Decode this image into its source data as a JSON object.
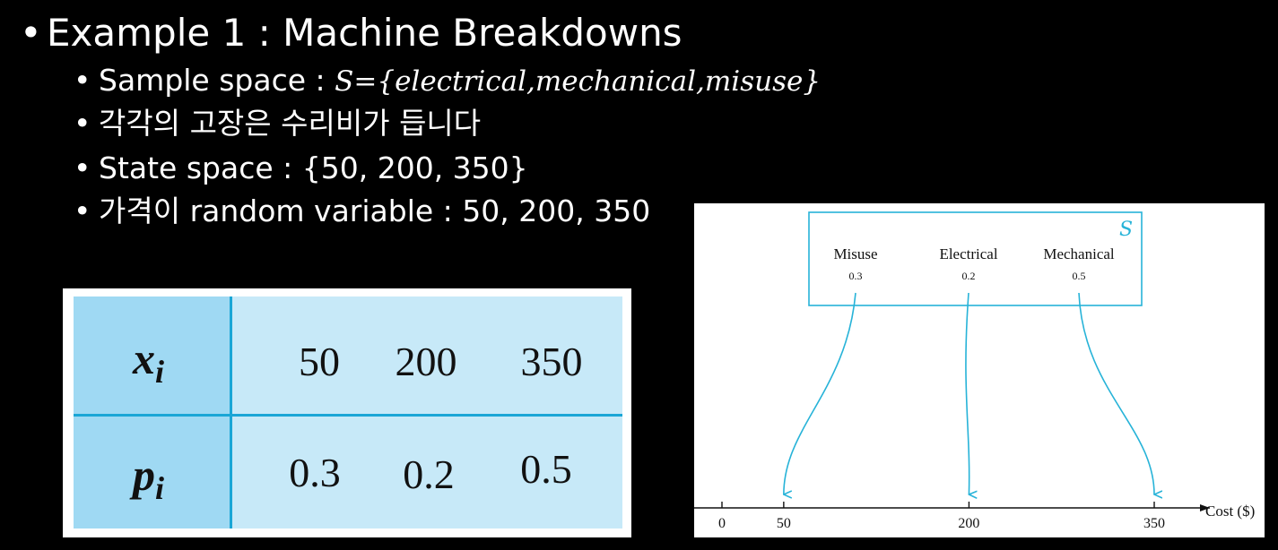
{
  "slide": {
    "main_bullet": "Example 1 : Machine Breakdowns",
    "bullets": {
      "sample_space_label": "Sample space : ",
      "sample_space_math": "S={electrical,mechanical,misuse}",
      "repair_cost": "각각의 고장은 수리비가 듭니다",
      "state_space": "State space : {50, 200, 350}",
      "random_variable": "가격이 random variable : 50, 200, 350"
    },
    "bullet_glyph": "•"
  },
  "pmf_table": {
    "row1_symbol": "x",
    "row1_sub": "i",
    "row2_symbol": "p",
    "row2_sub": "i",
    "x_values": [
      "50",
      "200",
      "350"
    ],
    "p_values": [
      "0.3",
      "0.2",
      "0.5"
    ]
  },
  "diagram": {
    "set_label": "S",
    "outcomes": [
      {
        "name": "Misuse",
        "prob": "0.3",
        "cost": 50
      },
      {
        "name": "Electrical",
        "prob": "0.2",
        "cost": 200
      },
      {
        "name": "Mechanical",
        "prob": "0.5",
        "cost": 350
      }
    ],
    "axis_ticks": [
      "0",
      "50",
      "200",
      "350"
    ],
    "axis_label": "Cost ($)",
    "arrow_color": "#27b3d8"
  }
}
